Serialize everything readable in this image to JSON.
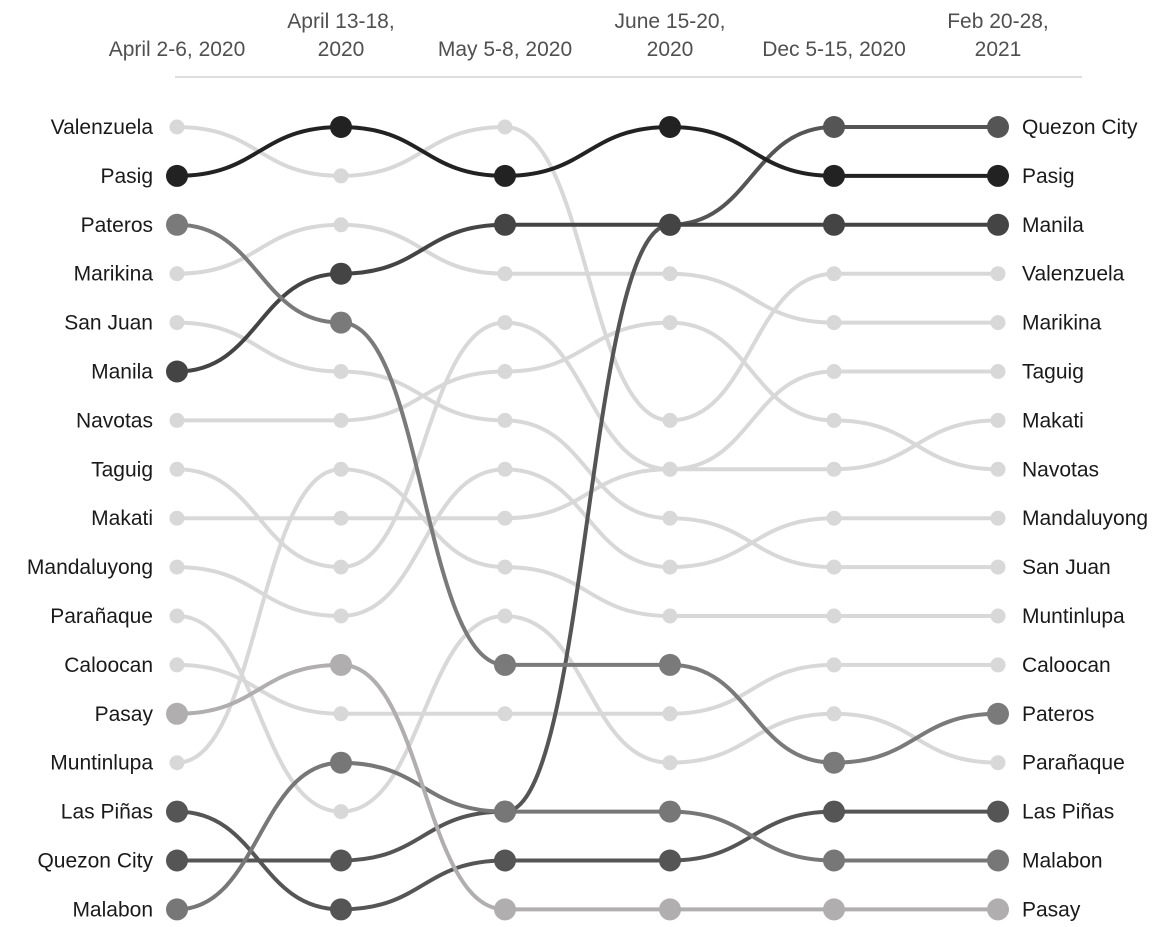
{
  "chart_data": {
    "type": "line",
    "title": "",
    "xlabel": "",
    "ylabel": "",
    "categories": [
      [
        "April 2-6, 2020"
      ],
      [
        "April 13-18,",
        "2020"
      ],
      [
        "May 5-8, 2020"
      ],
      [
        "June 15-20,",
        "2020"
      ],
      [
        "Dec 5-15, 2020"
      ],
      [
        "Feb 20-28,",
        "2021"
      ]
    ],
    "ylim": [
      1,
      17
    ],
    "grid": false,
    "legend": "none",
    "series": [
      {
        "name": "Quezon City",
        "values": [
          16,
          16,
          15,
          3,
          1,
          1
        ],
        "color": "#555555",
        "highlight": true
      },
      {
        "name": "Pasig",
        "values": [
          2,
          1,
          2,
          1,
          2,
          2
        ],
        "color": "#222222",
        "highlight": true
      },
      {
        "name": "Manila",
        "values": [
          6,
          4,
          3,
          3,
          3,
          3
        ],
        "color": "#444444",
        "highlight": true
      },
      {
        "name": "Valenzuela",
        "values": [
          1,
          2,
          1,
          7,
          4,
          4
        ],
        "color": "#d8d8d8",
        "highlight": false
      },
      {
        "name": "Marikina",
        "values": [
          4,
          3,
          4,
          4,
          5,
          5
        ],
        "color": "#d8d8d8",
        "highlight": false
      },
      {
        "name": "Taguig",
        "values": [
          8,
          10,
          5,
          8,
          6,
          6
        ],
        "color": "#d8d8d8",
        "highlight": false
      },
      {
        "name": "Makati",
        "values": [
          9,
          9,
          9,
          8,
          8,
          7
        ],
        "color": "#d8d8d8",
        "highlight": false
      },
      {
        "name": "Navotas",
        "values": [
          7,
          7,
          6,
          5,
          7,
          8
        ],
        "color": "#d8d8d8",
        "highlight": false
      },
      {
        "name": "Mandaluyong",
        "values": [
          10,
          11,
          8,
          10,
          9,
          9
        ],
        "color": "#d8d8d8",
        "highlight": false
      },
      {
        "name": "San Juan",
        "values": [
          5,
          6,
          7,
          9,
          10,
          10
        ],
        "color": "#d8d8d8",
        "highlight": false
      },
      {
        "name": "Muntinlupa",
        "values": [
          14,
          8,
          10,
          11,
          11,
          11
        ],
        "color": "#d8d8d8",
        "highlight": false
      },
      {
        "name": "Caloocan",
        "values": [
          12,
          13,
          13,
          13,
          12,
          12
        ],
        "color": "#d8d8d8",
        "highlight": false
      },
      {
        "name": "Pateros",
        "values": [
          3,
          5,
          12,
          12,
          14,
          13
        ],
        "color": "#7a7a7a",
        "highlight": true
      },
      {
        "name": "Parañaque",
        "values": [
          11,
          15,
          11,
          14,
          13,
          14
        ],
        "color": "#d8d8d8",
        "highlight": false
      },
      {
        "name": "Las Piñas",
        "values": [
          15,
          17,
          16,
          16,
          15,
          15
        ],
        "color": "#555555",
        "highlight": true
      },
      {
        "name": "Malabon",
        "values": [
          17,
          14,
          15,
          15,
          16,
          16
        ],
        "color": "#777777",
        "highlight": true
      },
      {
        "name": "Pasay",
        "values": [
          13,
          12,
          17,
          17,
          17,
          17
        ],
        "color": "#b0aeae",
        "highlight": true
      }
    ]
  }
}
